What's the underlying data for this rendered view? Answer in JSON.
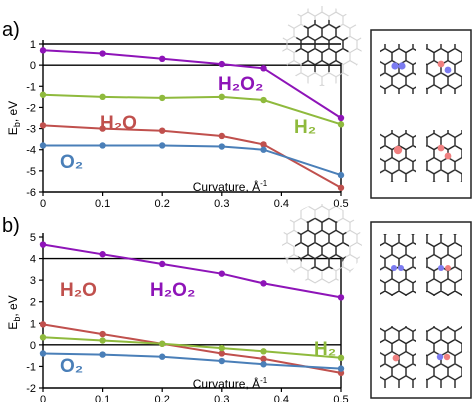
{
  "chart_data": [
    {
      "type": "line",
      "panel_label": "a)",
      "ylabel_main": "E",
      "ylabel_sub": "b",
      "ylabel_unit": ", eV",
      "xlabel_main": "Curvature, Å",
      "xlabel_sup": "-1",
      "xlim": [
        0,
        0.5
      ],
      "ylim": [
        -6,
        1
      ],
      "xticks": [
        "0",
        "0.1",
        "0.2",
        "0.3",
        "0.4",
        "0.5"
      ],
      "yticks": [
        "1",
        "0",
        "-1",
        "-2",
        "-3",
        "-4",
        "-5",
        "-6"
      ],
      "reference_lines": [
        1,
        0
      ],
      "series": [
        {
          "name": "H₂O₂",
          "color": "#8e14b8",
          "x": [
            0,
            0.1,
            0.2,
            0.3,
            0.37,
            0.5
          ],
          "y": [
            0.7,
            0.55,
            0.3,
            0.05,
            -0.15,
            -2.5
          ]
        },
        {
          "name": "H₂",
          "color": "#8fba3d",
          "x": [
            0,
            0.1,
            0.2,
            0.3,
            0.37,
            0.5
          ],
          "y": [
            -1.4,
            -1.5,
            -1.55,
            -1.5,
            -1.65,
            -2.8
          ]
        },
        {
          "name": "H₂O",
          "color": "#c0504d",
          "x": [
            0,
            0.1,
            0.2,
            0.3,
            0.37,
            0.5
          ],
          "y": [
            -2.85,
            -3.0,
            -3.1,
            -3.35,
            -3.75,
            -5.8
          ]
        },
        {
          "name": "O₂",
          "color": "#4a7fb8",
          "x": [
            0,
            0.1,
            0.2,
            0.3,
            0.37,
            0.5
          ],
          "y": [
            -3.8,
            -3.8,
            -3.8,
            -3.85,
            -4.0,
            -5.2
          ]
        }
      ]
    },
    {
      "type": "line",
      "panel_label": "b)",
      "ylabel_main": "E",
      "ylabel_sub": "b",
      "ylabel_unit": ", eV",
      "xlabel_main": "Curvature, Å",
      "xlabel_sup": "-1",
      "xlim": [
        0,
        0.5
      ],
      "ylim": [
        -2,
        5
      ],
      "xticks": [
        "0",
        "0.1",
        "0.2",
        "0.3",
        "0.4",
        "0.5"
      ],
      "yticks": [
        "5",
        "4",
        "3",
        "2",
        "1",
        "0",
        "-1",
        "-2"
      ],
      "reference_lines": [
        4,
        0
      ],
      "series": [
        {
          "name": "H₂O₂",
          "color": "#8e14b8",
          "x": [
            0,
            0.1,
            0.2,
            0.3,
            0.37,
            0.5
          ],
          "y": [
            4.65,
            4.2,
            3.75,
            3.3,
            2.85,
            2.2
          ]
        },
        {
          "name": "H₂O",
          "color": "#c0504d",
          "x": [
            0,
            0.1,
            0.2,
            0.3,
            0.37,
            0.5
          ],
          "y": [
            0.95,
            0.5,
            0.05,
            -0.4,
            -0.65,
            -1.3
          ]
        },
        {
          "name": "H₂",
          "color": "#8fba3d",
          "x": [
            0,
            0.1,
            0.2,
            0.3,
            0.37,
            0.5
          ],
          "y": [
            0.35,
            0.2,
            0.05,
            -0.15,
            -0.3,
            -0.6
          ]
        },
        {
          "name": "O₂",
          "color": "#4a7fb8",
          "x": [
            0,
            0.1,
            0.2,
            0.3,
            0.37,
            0.5
          ],
          "y": [
            -0.4,
            -0.45,
            -0.55,
            -0.75,
            -0.9,
            -1.1
          ]
        }
      ]
    }
  ]
}
